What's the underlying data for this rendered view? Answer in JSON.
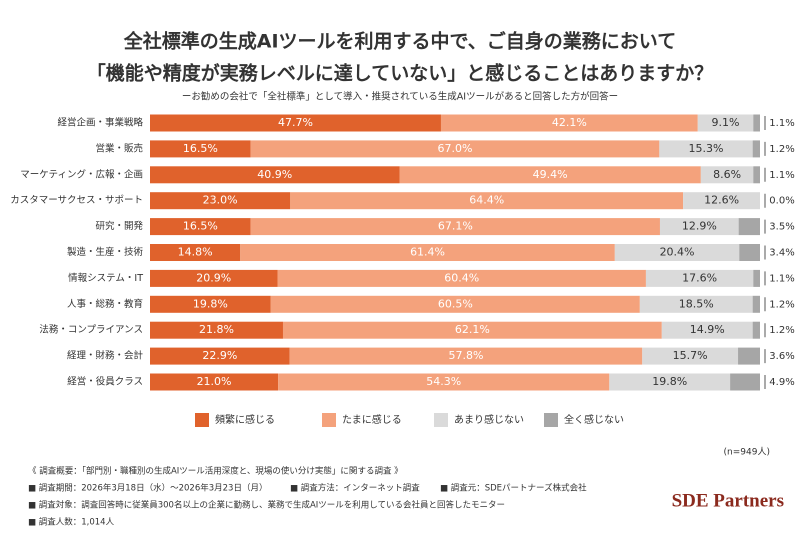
{
  "chart_data": {
    "type": "stacked-barh",
    "title": [
      "全社標準の生成AIツールを利用する中で、ご自身の業務において",
      "「機能や精度が実務レベルに達していない」と感じることはありますか？"
    ],
    "subtitle": "ーお勧めの会社で「全社標準」として導入・推奨されている生成AIツールがあると回答した方が回答ー",
    "categories": [
      "経営企画・事業戦略",
      "営業・販売",
      "マーケティング・広報・企画",
      "カスタマーサクセス・サポート",
      "研究・開発",
      "製造・生産・技術",
      "情報システム・IT",
      "人事・総務・教育",
      "法務・コンプライアンス",
      "経理・財務・会計",
      "経営・役員クラス"
    ],
    "series": [
      {
        "name": "頻繁に感じる",
        "color": "#e0622c",
        "values": [
          47.7,
          16.5,
          40.9,
          23.0,
          16.5,
          14.8,
          20.9,
          19.8,
          21.8,
          22.9,
          21.0
        ],
        "value_labels": [
          "47.7%",
          "16.5%",
          "40.9%",
          "23.0%",
          "16.5%",
          "14.8%",
          "20.9%",
          "19.8%",
          "21.8%",
          "22.9%",
          "21.0%"
        ]
      },
      {
        "name": "たまに感じる",
        "color": "#f4a27c",
        "values": [
          42.1,
          67.0,
          49.4,
          64.4,
          67.1,
          61.4,
          60.4,
          60.5,
          62.1,
          57.8,
          54.3
        ],
        "value_labels": [
          "42.1%",
          "67.0%",
          "49.4%",
          "64.4%",
          "67.1%",
          "61.4%",
          "60.4%",
          "60.5%",
          "62.1%",
          "57.8%",
          "54.3%"
        ]
      },
      {
        "name": "あまり感じない",
        "color": "#dadada",
        "values": [
          9.1,
          15.3,
          8.6,
          12.6,
          12.9,
          20.4,
          17.6,
          18.5,
          14.9,
          15.7,
          19.8
        ],
        "value_labels": [
          "9.1%",
          "15.3%",
          "8.6%",
          "12.6%",
          "12.9%",
          "20.4%",
          "17.6%",
          "18.5%",
          "14.9%",
          "15.7%",
          "19.8%"
        ]
      },
      {
        "name": "全く感じない",
        "color": "#a6a6a6",
        "values": [
          1.1,
          1.2,
          1.1,
          0.0,
          3.5,
          3.4,
          1.1,
          1.2,
          1.2,
          3.6,
          4.9
        ],
        "value_labels": [
          "1.1%",
          "1.2%",
          "1.1%",
          "0.0%",
          "3.5%",
          "3.4%",
          "1.1%",
          "1.2%",
          "1.2%",
          "3.6%",
          "4.9%"
        ]
      }
    ],
    "xlim": [
      0,
      100
    ],
    "note": "(n=949人)",
    "footnotes": [
      "《 調査概要：「部門別・職種別の生成AIツール活用深度と、現場の使い分け実態」に関する調査 》",
      "■ 調査期間：2026年3月18日（水）〜2026年3月23日（月）",
      "■ 調査方法：インターネット調査",
      "■ 調査元：SDEパートナーズ株式会社",
      "■ 調査対象：調査回答時に従業員300名以上の企業に勤務し、業務で生成AIツールを利用している会社員と回答したモニター",
      "■ 調査人数：1,014人"
    ],
    "logo": "SDE Partners"
  }
}
